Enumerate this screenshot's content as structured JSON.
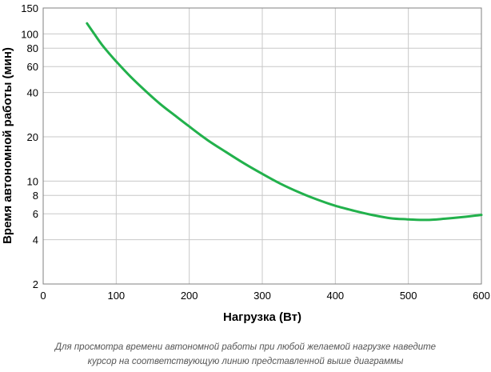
{
  "chart_data": {
    "type": "line",
    "xlabel": "Нагрузка (Вт)",
    "ylabel": "Время автономной работы (мин)",
    "xlim": [
      0,
      600
    ],
    "ylim": [
      2,
      150
    ],
    "yscale": "log",
    "grid": true,
    "x_ticks": [
      "0",
      "100",
      "200",
      "300",
      "400",
      "500",
      "600"
    ],
    "y_ticks": [
      "2",
      "4",
      "6",
      "8",
      "10",
      "20",
      "40",
      "60",
      "80",
      "100",
      "150"
    ],
    "series": [
      {
        "color": "#22b14c",
        "x": [
          60,
          70,
          80,
          90,
          100,
          120,
          140,
          160,
          180,
          200,
          225,
          250,
          275,
          300,
          325,
          350,
          375,
          400,
          425,
          450,
          475,
          500,
          525,
          550,
          575,
          600
        ],
        "y": [
          118,
          100,
          85,
          74,
          65,
          51,
          41,
          33.5,
          28,
          23.5,
          19,
          15.8,
          13.2,
          11.2,
          9.6,
          8.4,
          7.5,
          6.8,
          6.3,
          5.9,
          5.6,
          5.5,
          5.45,
          5.55,
          5.7,
          5.9
        ]
      }
    ]
  },
  "caption": {
    "line1": "Для просмотра времени автономной работы при любой желаемой нагрузке наведите",
    "line2": "курсор на соответствующую линию представленной выше диаграммы"
  }
}
